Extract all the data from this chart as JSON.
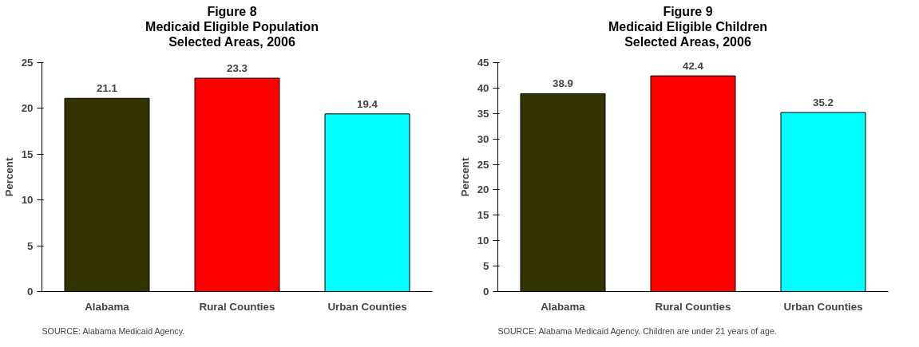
{
  "chart_data": [
    {
      "type": "bar",
      "title": "Figure 8\nMedicaid Eligible Population\nSelected Areas, 2006",
      "ylabel": "Percent",
      "categories": [
        "Alabama",
        "Rural Counties",
        "Urban Counties"
      ],
      "values": [
        21.1,
        23.3,
        19.4
      ],
      "colors": [
        "#333300",
        "#ff0000",
        "#00ffff"
      ],
      "ylim": [
        0,
        25
      ],
      "yticks": [
        0,
        5,
        10,
        15,
        20,
        25
      ],
      "data_labels": true,
      "grid": false,
      "annotations": [
        "SOURCE:  Alabama Medicaid Agency."
      ]
    },
    {
      "type": "bar",
      "title": "Figure 9\nMedicaid Eligible Children\nSelected Areas, 2006",
      "ylabel": "Percent",
      "categories": [
        "Alabama",
        "Rural Counties",
        "Urban Counties"
      ],
      "values": [
        38.9,
        42.4,
        35.2
      ],
      "colors": [
        "#333300",
        "#ff0000",
        "#00ffff"
      ],
      "ylim": [
        0,
        45
      ],
      "yticks": [
        0,
        5,
        10,
        15,
        20,
        25,
        30,
        35,
        40,
        45
      ],
      "data_labels": true,
      "grid": false,
      "annotations": [
        "SOURCE:  Alabama Medicaid Agency.  Children are under 21 years of age."
      ]
    }
  ]
}
